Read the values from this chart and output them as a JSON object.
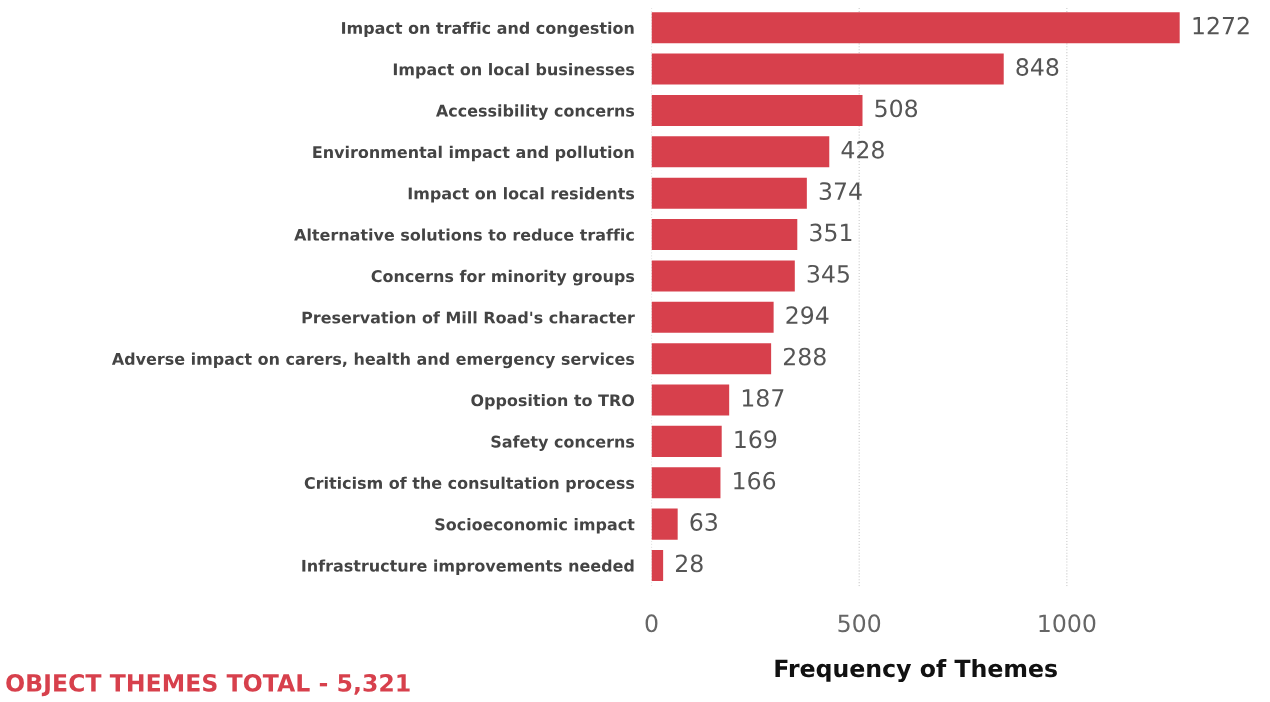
{
  "chart_data": {
    "type": "bar",
    "orientation": "horizontal",
    "categories": [
      "Impact on traffic and congestion",
      "Impact on local businesses",
      "Accessibility concerns",
      "Environmental impact and pollution",
      "Impact on local residents",
      "Alternative solutions to reduce traffic",
      "Concerns for minority groups",
      "Preservation of Mill Road's character",
      "Adverse impact on carers, health and emergency services",
      "Opposition to TRO",
      "Safety concerns",
      "Criticism of the consultation process",
      "Socioeconomic impact",
      "Infrastructure improvements needed"
    ],
    "values": [
      1272,
      848,
      508,
      428,
      374,
      351,
      345,
      294,
      288,
      187,
      169,
      166,
      63,
      28
    ],
    "color": "#d7404c",
    "data_labels": true,
    "xlim": [
      0,
      1272
    ],
    "xticks": [
      0,
      500,
      1000
    ],
    "grid": "x",
    "xlabel": "Frequency of Themes",
    "annotations": [
      "OBJECT THEMES TOTAL - 5,321"
    ]
  }
}
